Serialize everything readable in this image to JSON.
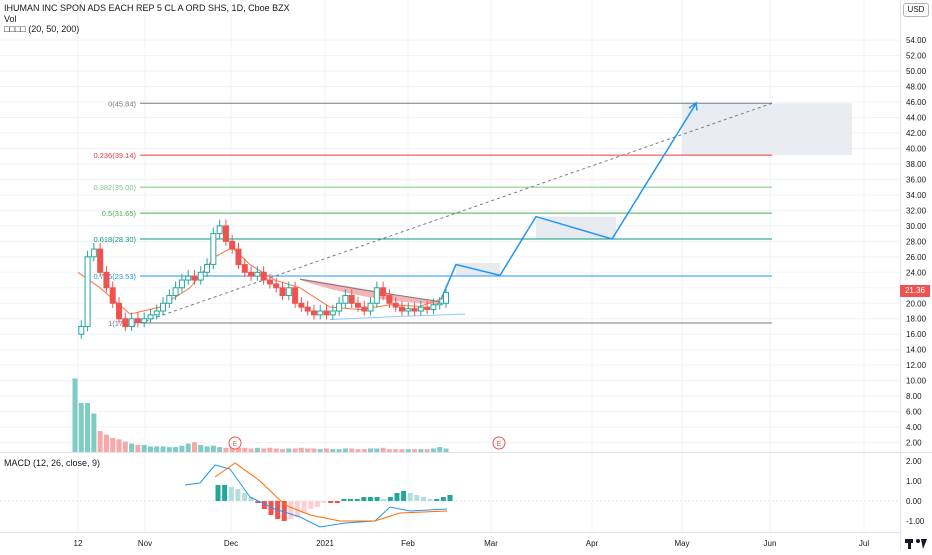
{
  "header": {
    "symbol_line": "IHUMAN INC SPON ADS EACH REP 5 CL A ORD SHS, 1D, Cboe BZX",
    "vol_label": "Vol",
    "ma_line": "□□□□ (20, 50, 200)"
  },
  "currency_badge": "USD",
  "last_price": "21.36",
  "price_axis": {
    "ticks": [
      "54.00",
      "52.00",
      "50.00",
      "48.00",
      "46.00",
      "44.00",
      "42.00",
      "40.00",
      "38.00",
      "36.00",
      "34.00",
      "32.00",
      "30.00",
      "28.00",
      "26.00",
      "24.00",
      "22.00",
      "20.00",
      "18.00",
      "16.00",
      "14.00",
      "12.00",
      "10.00",
      "8.00",
      "6.00",
      "4.00",
      "2.00"
    ]
  },
  "macd_axis": {
    "ticks": [
      "2.00",
      "1.00",
      "0.00",
      "-1.00"
    ]
  },
  "time_axis": {
    "labels": [
      "12",
      "Nov",
      "Dec",
      "2021",
      "Feb",
      "Mar",
      "Apr",
      "May",
      "Jun",
      "Jul"
    ]
  },
  "fib_levels": [
    {
      "label": "0(45.84)",
      "price": 45.84,
      "color": "#787b86"
    },
    {
      "label": "0.236(39.14)",
      "price": 39.14,
      "color": "#f23645"
    },
    {
      "label": "0.382(35.00)",
      "price": 35.0,
      "color": "#81c784"
    },
    {
      "label": "0.5(31.65)",
      "price": 31.65,
      "color": "#4caf50"
    },
    {
      "label": "0.618(28.30)",
      "price": 28.3,
      "color": "#089981"
    },
    {
      "label": "0.786(23.53)",
      "price": 23.53,
      "color": "#2196f3"
    },
    {
      "label": "1(17.45)",
      "price": 17.45,
      "color": "#787b86"
    }
  ],
  "macd_label": "MACD (12, 26, close, 9)",
  "earnings_markers": [
    "E",
    "E"
  ],
  "colors": {
    "up": "#26a69a",
    "down": "#ef5350",
    "projection": "#2196f3",
    "grid": "#f0f3fa"
  }
}
